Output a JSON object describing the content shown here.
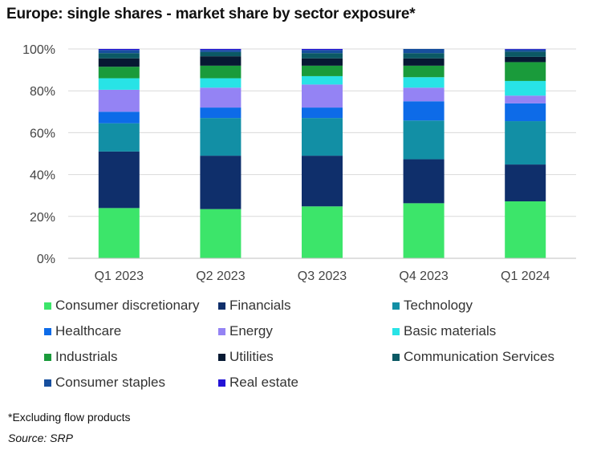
{
  "chart_data": {
    "type": "bar",
    "stacked": true,
    "title": "Europe: single shares - market share by sector exposure*",
    "xlabel": "",
    "ylabel": "",
    "ylim": [
      0,
      100
    ],
    "y_ticks": [
      "0%",
      "20%",
      "40%",
      "60%",
      "80%",
      "100%"
    ],
    "grid": true,
    "legend_position": "bottom",
    "categories": [
      "Q1 2023",
      "Q2 2023",
      "Q3 2023",
      "Q4 2023",
      "Q1 2024"
    ],
    "series": [
      {
        "name": "Consumer discretionary",
        "color": "#3ce56a",
        "values": [
          24.0,
          23.5,
          24.8,
          26.3,
          27.2
        ]
      },
      {
        "name": "Financials",
        "color": "#0f2f6b",
        "values": [
          27.0,
          25.5,
          24.2,
          21.0,
          17.6
        ]
      },
      {
        "name": "Technology",
        "color": "#128fa5",
        "values": [
          13.5,
          18.0,
          18.0,
          18.5,
          20.7
        ]
      },
      {
        "name": "Healthcare",
        "color": "#0d6be8",
        "values": [
          5.5,
          5.0,
          5.0,
          9.2,
          8.5
        ]
      },
      {
        "name": "Energy",
        "color": "#9483f4",
        "values": [
          10.5,
          9.5,
          11.0,
          6.5,
          3.7
        ]
      },
      {
        "name": "Basic materials",
        "color": "#28e3e6",
        "values": [
          5.5,
          4.5,
          4.0,
          5.0,
          7.0
        ]
      },
      {
        "name": "Industrials",
        "color": "#1a9b3b",
        "values": [
          5.5,
          6.0,
          5.0,
          5.5,
          9.0
        ]
      },
      {
        "name": "Utilities",
        "color": "#071933",
        "values": [
          4.0,
          4.5,
          3.5,
          3.5,
          2.5
        ]
      },
      {
        "name": "Communication Services",
        "color": "#0b5964",
        "values": [
          2.5,
          2.0,
          2.5,
          2.5,
          2.5
        ]
      },
      {
        "name": "Consumer staples",
        "color": "#174f9e",
        "values": [
          1.5,
          1.0,
          1.5,
          2.0,
          1.0
        ]
      },
      {
        "name": "Real estate",
        "color": "#2313d6",
        "values": [
          0.5,
          0.5,
          0.5,
          0.0,
          0.3
        ]
      }
    ]
  },
  "footnote": "*Excluding flow products",
  "source": "Source: SRP"
}
